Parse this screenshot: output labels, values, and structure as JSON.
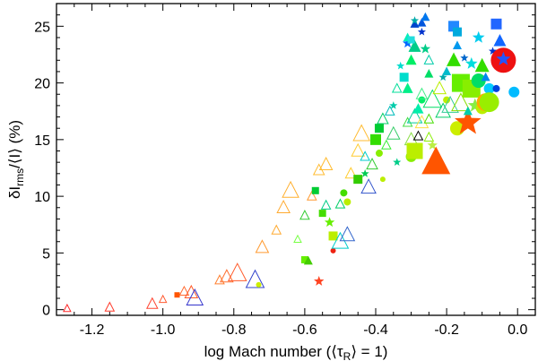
{
  "chart_data": {
    "type": "scatter",
    "title": "",
    "xlabel": "log Mach number (⟨τR⟩ = 1)",
    "xlabel_parts": {
      "main": "log Mach number (⟨τ",
      "sub": "R",
      "rest": "⟩ = 1)"
    },
    "ylabel": "δIrms/⟨I⟩ (%)",
    "ylabel_parts": {
      "main": "δI",
      "sub": "rms",
      "rest": "/⟨I⟩ (%)"
    },
    "xlim": [
      -1.3,
      0.05
    ],
    "ylim": [
      -0.5,
      27
    ],
    "xticks": [
      -1.2,
      -1.0,
      -0.8,
      -0.6,
      -0.4,
      -0.2,
      0.0
    ],
    "xtick_labels": [
      "-1.2",
      "-1.0",
      "-0.8",
      "-0.6",
      "-0.4",
      "-0.2",
      "0.0"
    ],
    "yticks": [
      0,
      5,
      10,
      15,
      20,
      25
    ],
    "ytick_labels": [
      "0",
      "5",
      "10",
      "15",
      "20",
      "25"
    ],
    "grid": false,
    "encoding": "marker shape = surface gravity group, marker size = metallicity, color = effective temperature (red hot to blue cool)",
    "points": [
      {
        "x": -1.27,
        "y": 0.1,
        "shape": "triangle-open",
        "color": "#ff2a2a",
        "size": 4
      },
      {
        "x": -1.15,
        "y": 0.2,
        "shape": "triangle-open",
        "color": "#ff3a2a",
        "size": 5
      },
      {
        "x": -1.03,
        "y": 0.5,
        "shape": "triangle-open",
        "color": "#ff4430",
        "size": 6
      },
      {
        "x": -1.0,
        "y": 0.9,
        "shape": "triangle-open",
        "color": "#ff5a30",
        "size": 4
      },
      {
        "x": -0.96,
        "y": 1.3,
        "shape": "square",
        "color": "#ff5500",
        "size": 3
      },
      {
        "x": -0.94,
        "y": 1.6,
        "shape": "triangle-open",
        "color": "#ff6a30",
        "size": 5
      },
      {
        "x": -0.92,
        "y": 1.5,
        "shape": "triangle-open",
        "color": "#ff5a2a",
        "size": 7
      },
      {
        "x": -0.91,
        "y": 1.0,
        "shape": "triangle-open",
        "color": "#3333cc",
        "size": 9
      },
      {
        "x": -0.84,
        "y": 2.6,
        "shape": "triangle-open",
        "color": "#ff8030",
        "size": 5
      },
      {
        "x": -0.82,
        "y": 2.9,
        "shape": "triangle-open",
        "color": "#ff7030",
        "size": 7
      },
      {
        "x": -0.79,
        "y": 3.2,
        "shape": "triangle-open",
        "color": "#ff5a2a",
        "size": 10
      },
      {
        "x": -0.74,
        "y": 2.6,
        "shape": "triangle-open",
        "color": "#3344cc",
        "size": 10
      },
      {
        "x": -0.73,
        "y": 2.2,
        "shape": "circle",
        "color": "#ccee00",
        "size": 3
      },
      {
        "x": -0.72,
        "y": 5.5,
        "shape": "triangle-open",
        "color": "#ff9a30",
        "size": 7
      },
      {
        "x": -0.68,
        "y": 7.0,
        "shape": "triangle-open",
        "color": "#ffaa30",
        "size": 5
      },
      {
        "x": -0.66,
        "y": 9.0,
        "shape": "triangle-open",
        "color": "#ffaa30",
        "size": 7
      },
      {
        "x": -0.64,
        "y": 10.5,
        "shape": "triangle-open",
        "color": "#ffb030",
        "size": 9
      },
      {
        "x": -0.62,
        "y": 6.2,
        "shape": "triangle-open",
        "color": "#77ff44",
        "size": 4
      },
      {
        "x": -0.6,
        "y": 4.4,
        "shape": "square",
        "color": "#66ee00",
        "size": 4
      },
      {
        "x": -0.59,
        "y": 4.3,
        "shape": "triangle",
        "color": "#44cc00",
        "size": 5
      },
      {
        "x": -0.6,
        "y": 8.3,
        "shape": "triangle-open",
        "color": "#33cc33",
        "size": 5
      },
      {
        "x": -0.58,
        "y": 10.0,
        "shape": "triangle-open",
        "color": "#ff9a30",
        "size": 5
      },
      {
        "x": -0.56,
        "y": 12.3,
        "shape": "triangle-open",
        "color": "#ffbb30",
        "size": 6
      },
      {
        "x": -0.54,
        "y": 12.8,
        "shape": "triangle-open",
        "color": "#ffbb30",
        "size": 7
      },
      {
        "x": -0.57,
        "y": 10.5,
        "shape": "square",
        "color": "#00cc33",
        "size": 4
      },
      {
        "x": -0.56,
        "y": 2.5,
        "shape": "star",
        "color": "#ff4422",
        "size": 5
      },
      {
        "x": -0.55,
        "y": 8.5,
        "shape": "square",
        "color": "#44dd00",
        "size": 4
      },
      {
        "x": -0.54,
        "y": 9.2,
        "shape": "triangle-open",
        "color": "#00cc88",
        "size": 5
      },
      {
        "x": -0.53,
        "y": 7.7,
        "shape": "star",
        "color": "#66ee00",
        "size": 5
      },
      {
        "x": -0.52,
        "y": 5.2,
        "shape": "circle",
        "color": "#ee2211",
        "size": 3
      },
      {
        "x": -0.52,
        "y": 6.5,
        "shape": "square",
        "color": "#bbee00",
        "size": 5
      },
      {
        "x": -0.5,
        "y": 6.0,
        "shape": "triangle-open",
        "color": "#00cccc",
        "size": 9
      },
      {
        "x": -0.48,
        "y": 6.6,
        "shape": "triangle-open",
        "color": "#3366cc",
        "size": 8
      },
      {
        "x": -0.5,
        "y": 9.3,
        "shape": "triangle-open",
        "color": "#00cc66",
        "size": 5
      },
      {
        "x": -0.49,
        "y": 10.3,
        "shape": "circle",
        "color": "#44dd00",
        "size": 4
      },
      {
        "x": -0.48,
        "y": 9.5,
        "shape": "circle",
        "color": "#bbee00",
        "size": 4
      },
      {
        "x": -0.47,
        "y": 12.0,
        "shape": "triangle-open",
        "color": "#ffcc30",
        "size": 6
      },
      {
        "x": -0.45,
        "y": 14.0,
        "shape": "triangle-open",
        "color": "#ffcc30",
        "size": 7
      },
      {
        "x": -0.44,
        "y": 15.5,
        "shape": "triangle-open",
        "color": "#ffbb30",
        "size": 9
      },
      {
        "x": -0.45,
        "y": 11.5,
        "shape": "square",
        "color": "#33cc00",
        "size": 5
      },
      {
        "x": -0.43,
        "y": 12.0,
        "shape": "star",
        "color": "#00cc55",
        "size": 4
      },
      {
        "x": -0.43,
        "y": 13.5,
        "shape": "triangle-open",
        "color": "#00cccc",
        "size": 5
      },
      {
        "x": -0.42,
        "y": 10.8,
        "shape": "triangle-open",
        "color": "#3355cc",
        "size": 8
      },
      {
        "x": -0.41,
        "y": 12.8,
        "shape": "triangle-open",
        "color": "#33cc33",
        "size": 6
      },
      {
        "x": -0.4,
        "y": 15.0,
        "shape": "square",
        "color": "#33dd00",
        "size": 6
      },
      {
        "x": -0.39,
        "y": 16.0,
        "shape": "square",
        "color": "#00cc33",
        "size": 5
      },
      {
        "x": -0.39,
        "y": 13.8,
        "shape": "circle",
        "color": "#88ee00",
        "size": 4
      },
      {
        "x": -0.38,
        "y": 11.5,
        "shape": "circle",
        "color": "#bbee00",
        "size": 3
      },
      {
        "x": -0.38,
        "y": 16.8,
        "shape": "triangle-open",
        "color": "#00cc66",
        "size": 6
      },
      {
        "x": -0.37,
        "y": 14.5,
        "shape": "triangle-open",
        "color": "#33ee33",
        "size": 5
      },
      {
        "x": -0.36,
        "y": 17.5,
        "shape": "triangle-open",
        "color": "#00bbbb",
        "size": 5
      },
      {
        "x": -0.35,
        "y": 15.5,
        "shape": "triangle-open",
        "color": "#33cc66",
        "size": 7
      },
      {
        "x": -0.35,
        "y": 18.0,
        "shape": "star",
        "color": "#00ccaa",
        "size": 4
      },
      {
        "x": -0.34,
        "y": 13.0,
        "shape": "star",
        "color": "#00cc88",
        "size": 4
      },
      {
        "x": -0.34,
        "y": 19.5,
        "shape": "triangle-open",
        "color": "#00dd99",
        "size": 5
      },
      {
        "x": -0.33,
        "y": 21.5,
        "shape": "star",
        "color": "#00ddcc",
        "size": 4
      },
      {
        "x": -0.32,
        "y": 20.5,
        "shape": "square",
        "color": "#00ddcc",
        "size": 5
      },
      {
        "x": -0.31,
        "y": 19.5,
        "shape": "triangle",
        "color": "#00ee88",
        "size": 6
      },
      {
        "x": -0.31,
        "y": 16.5,
        "shape": "triangle-open",
        "color": "#44dd44",
        "size": 5
      },
      {
        "x": -0.3,
        "y": 15.0,
        "shape": "triangle-open",
        "color": "#88dd44",
        "size": 7
      },
      {
        "x": -0.3,
        "y": 13.5,
        "shape": "circle",
        "color": "#88ee00",
        "size": 6
      },
      {
        "x": -0.29,
        "y": 14.0,
        "shape": "square",
        "color": "#bbee00",
        "size": 9
      },
      {
        "x": -0.29,
        "y": 17.0,
        "shape": "triangle-open",
        "color": "#00cc99",
        "size": 8
      },
      {
        "x": -0.28,
        "y": 15.3,
        "shape": "triangle-open",
        "color": "#000000",
        "size": 5
      },
      {
        "x": -0.28,
        "y": 17.7,
        "shape": "triangle",
        "color": "#00eeaa",
        "size": 6
      },
      {
        "x": -0.27,
        "y": 18.5,
        "shape": "circle",
        "color": "#00ee66",
        "size": 4
      },
      {
        "x": -0.27,
        "y": 16.5,
        "shape": "triangle-open",
        "color": "#ffdd44",
        "size": 7
      },
      {
        "x": -0.27,
        "y": 19.0,
        "shape": "triangle-open",
        "color": "#44ee88",
        "size": 6
      },
      {
        "x": -0.29,
        "y": 23.2,
        "shape": "triangle",
        "color": "#00cc88",
        "size": 7
      },
      {
        "x": -0.3,
        "y": 22.0,
        "shape": "triangle",
        "color": "#00ee66",
        "size": 6
      },
      {
        "x": -0.31,
        "y": 23.5,
        "shape": "star",
        "color": "#0066ff",
        "size": 5
      },
      {
        "x": -0.31,
        "y": 24.0,
        "shape": "triangle",
        "color": "#00eebb",
        "size": 5
      },
      {
        "x": -0.3,
        "y": 23.8,
        "shape": "square",
        "color": "#22dddd",
        "size": 4
      },
      {
        "x": -0.29,
        "y": 25.2,
        "shape": "triangle",
        "color": "#0044cc",
        "size": 5
      },
      {
        "x": -0.29,
        "y": 25.5,
        "shape": "star",
        "color": "#00aaaa",
        "size": 4
      },
      {
        "x": -0.27,
        "y": 24.5,
        "shape": "star",
        "color": "#0033cc",
        "size": 4
      },
      {
        "x": -0.27,
        "y": 25.3,
        "shape": "triangle",
        "color": "#0055dd",
        "size": 5
      },
      {
        "x": -0.26,
        "y": 25.8,
        "shape": "triangle",
        "color": "#0077ee",
        "size": 5
      },
      {
        "x": -0.26,
        "y": 23.0,
        "shape": "star",
        "color": "#00cc88",
        "size": 5
      },
      {
        "x": -0.25,
        "y": 22.0,
        "shape": "triangle-open",
        "color": "#00ccaa",
        "size": 5
      },
      {
        "x": -0.25,
        "y": 20.8,
        "shape": "triangle",
        "color": "#00dd66",
        "size": 5
      },
      {
        "x": -0.25,
        "y": 16.8,
        "shape": "triangle-open",
        "color": "#44dd00",
        "size": 5
      },
      {
        "x": -0.25,
        "y": 15.2,
        "shape": "triangle-open",
        "color": "#88ee00",
        "size": 5
      },
      {
        "x": -0.24,
        "y": 14.5,
        "shape": "star",
        "color": "#bbee44",
        "size": 5
      },
      {
        "x": -0.24,
        "y": 18.5,
        "shape": "triangle-open",
        "color": "#00dd66",
        "size": 10
      },
      {
        "x": -0.23,
        "y": 13.0,
        "shape": "triangle",
        "color": "#ff5500",
        "size": 16
      },
      {
        "x": -0.22,
        "y": 19.5,
        "shape": "triangle-open",
        "color": "#bbee00",
        "size": 7
      },
      {
        "x": -0.21,
        "y": 20.5,
        "shape": "star",
        "color": "#00aaaa",
        "size": 4
      },
      {
        "x": -0.21,
        "y": 17.5,
        "shape": "triangle-open",
        "color": "#00cc66",
        "size": 8
      },
      {
        "x": -0.2,
        "y": 18.5,
        "shape": "circle",
        "color": "#bbee00",
        "size": 4
      },
      {
        "x": -0.2,
        "y": 21.0,
        "shape": "triangle",
        "color": "#00bbcc",
        "size": 5
      },
      {
        "x": -0.19,
        "y": 18.0,
        "shape": "triangle-open",
        "color": "#33cc99",
        "size": 9
      },
      {
        "x": -0.18,
        "y": 22.0,
        "shape": "triangle",
        "color": "#33dd00",
        "size": 8
      },
      {
        "x": -0.18,
        "y": 25.0,
        "shape": "square",
        "color": "#2288ff",
        "size": 6
      },
      {
        "x": -0.17,
        "y": 24.5,
        "shape": "square",
        "color": "#00aadd",
        "size": 5
      },
      {
        "x": -0.17,
        "y": 23.3,
        "shape": "triangle",
        "color": "#0099ee",
        "size": 5
      },
      {
        "x": -0.17,
        "y": 16.0,
        "shape": "circle",
        "color": "#ccee00",
        "size": 8
      },
      {
        "x": -0.16,
        "y": 20.0,
        "shape": "square",
        "color": "#66ee00",
        "size": 10
      },
      {
        "x": -0.16,
        "y": 18.2,
        "shape": "triangle-open",
        "color": "#88dd00",
        "size": 10
      },
      {
        "x": -0.15,
        "y": 22.2,
        "shape": "star",
        "color": "#0066cc",
        "size": 4
      },
      {
        "x": -0.14,
        "y": 16.5,
        "shape": "star",
        "color": "#ff5500",
        "size": 13
      },
      {
        "x": -0.14,
        "y": 17.5,
        "shape": "triangle",
        "color": "#00ccaa",
        "size": 5
      },
      {
        "x": -0.13,
        "y": 19.5,
        "shape": "square",
        "color": "#88ee00",
        "size": 10
      },
      {
        "x": -0.13,
        "y": 21.7,
        "shape": "star",
        "color": "#00dddd",
        "size": 6
      },
      {
        "x": -0.12,
        "y": 18.0,
        "shape": "star",
        "color": "#88ee44",
        "size": 7
      },
      {
        "x": -0.11,
        "y": 24.0,
        "shape": "star",
        "color": "#00ccee",
        "size": 6
      },
      {
        "x": -0.11,
        "y": 20.2,
        "shape": "circle",
        "color": "#00dd66",
        "size": 8
      },
      {
        "x": -0.1,
        "y": 21.5,
        "shape": "triangle",
        "color": "#33dd00",
        "size": 8
      },
      {
        "x": -0.1,
        "y": 17.8,
        "shape": "circle",
        "color": "#bbee00",
        "size": 7
      },
      {
        "x": -0.09,
        "y": 18.3,
        "shape": "circle",
        "color": "#ffaa00",
        "size": 10
      },
      {
        "x": -0.09,
        "y": 20.5,
        "shape": "triangle",
        "color": "#0088ee",
        "size": 5
      },
      {
        "x": -0.08,
        "y": 19.5,
        "shape": "circle",
        "color": "#00ccff",
        "size": 6
      },
      {
        "x": -0.08,
        "y": 18.3,
        "shape": "circle",
        "color": "#99ee00",
        "size": 11
      },
      {
        "x": -0.07,
        "y": 22.8,
        "shape": "star",
        "color": "#0033cc",
        "size": 4
      },
      {
        "x": -0.06,
        "y": 19.5,
        "shape": "circle",
        "color": "#0044dd",
        "size": 4
      },
      {
        "x": -0.06,
        "y": 25.2,
        "shape": "square",
        "color": "#2266ff",
        "size": 6
      },
      {
        "x": -0.05,
        "y": 23.7,
        "shape": "triangle",
        "color": "#1166ff",
        "size": 7
      },
      {
        "x": -0.04,
        "y": 22.0,
        "shape": "circle",
        "color": "#ee1111",
        "size": 14
      },
      {
        "x": -0.04,
        "y": 22.1,
        "shape": "star",
        "color": "#2255ff",
        "size": 7
      },
      {
        "x": -0.01,
        "y": 19.2,
        "shape": "circle",
        "color": "#00bbff",
        "size": 6
      }
    ]
  }
}
